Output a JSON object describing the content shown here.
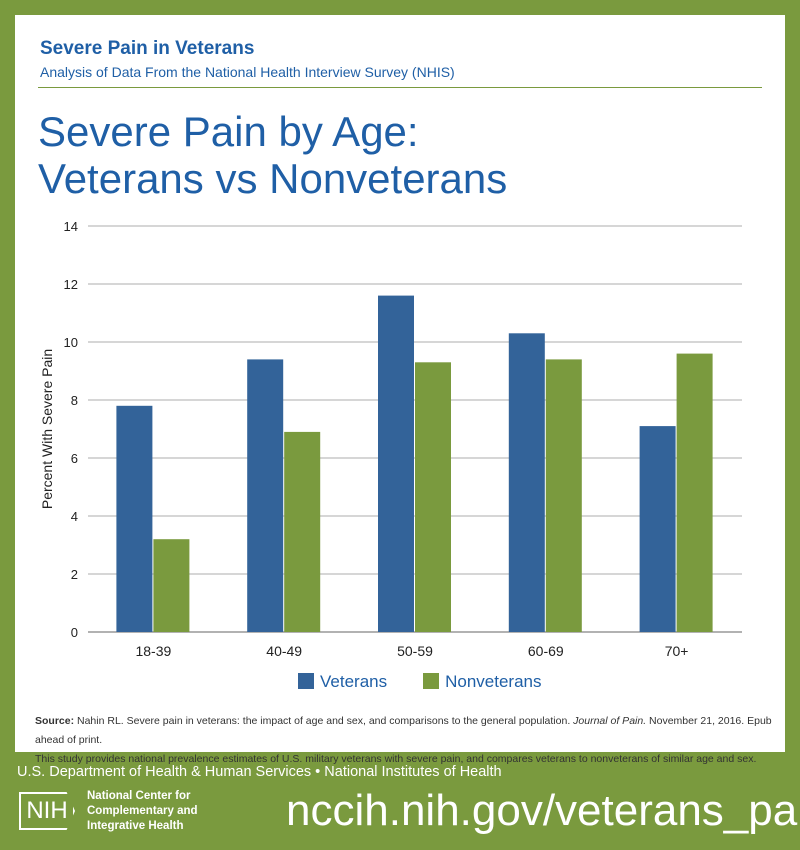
{
  "header": {
    "title": "Severe Pain in Veterans",
    "subtitle": "Analysis of Data From the National Health Interview Survey (NHIS)"
  },
  "chart_data": {
    "type": "bar",
    "title_line1": "Severe Pain by Age:",
    "title_line2": "Veterans vs Nonveterans",
    "ylabel": "Percent With Severe Pain",
    "xlabel": "",
    "categories": [
      "18-39",
      "40-49",
      "50-59",
      "60-69",
      "70+"
    ],
    "ylim": [
      0,
      14
    ],
    "yticks": [
      0,
      2,
      4,
      6,
      8,
      10,
      12,
      14
    ],
    "grid": true,
    "legend_position": "bottom",
    "series": [
      {
        "name": "Veterans",
        "color": "#336399",
        "values": [
          7.8,
          9.4,
          11.6,
          10.3,
          7.1
        ]
      },
      {
        "name": "Nonveterans",
        "color": "#7a9a3e",
        "values": [
          3.2,
          6.9,
          9.3,
          9.4,
          9.6
        ]
      }
    ]
  },
  "source": {
    "label": "Source:",
    "text_before": " Nahin RL. Severe pain in veterans: the impact of age and sex, and comparisons to the general population. ",
    "journal": "Journal of Pain.",
    "text_after": " November 21, 2016. Epub ahead of print.",
    "note": "This study provides national prevalence estimates of U.S. military veterans with severe pain, and compares veterans to nonveterans of similar age and sex."
  },
  "footer": {
    "agencies": "U.S. Department of Health & Human Services • National Institutes of Health",
    "logo_text": "NIH",
    "center_name": "National Center for Complementary and Integrative Health",
    "url": "nccih.nih.gov/veterans_pain"
  },
  "colors": {
    "background": "#7a9a3e",
    "title": "#1f5fa6"
  }
}
